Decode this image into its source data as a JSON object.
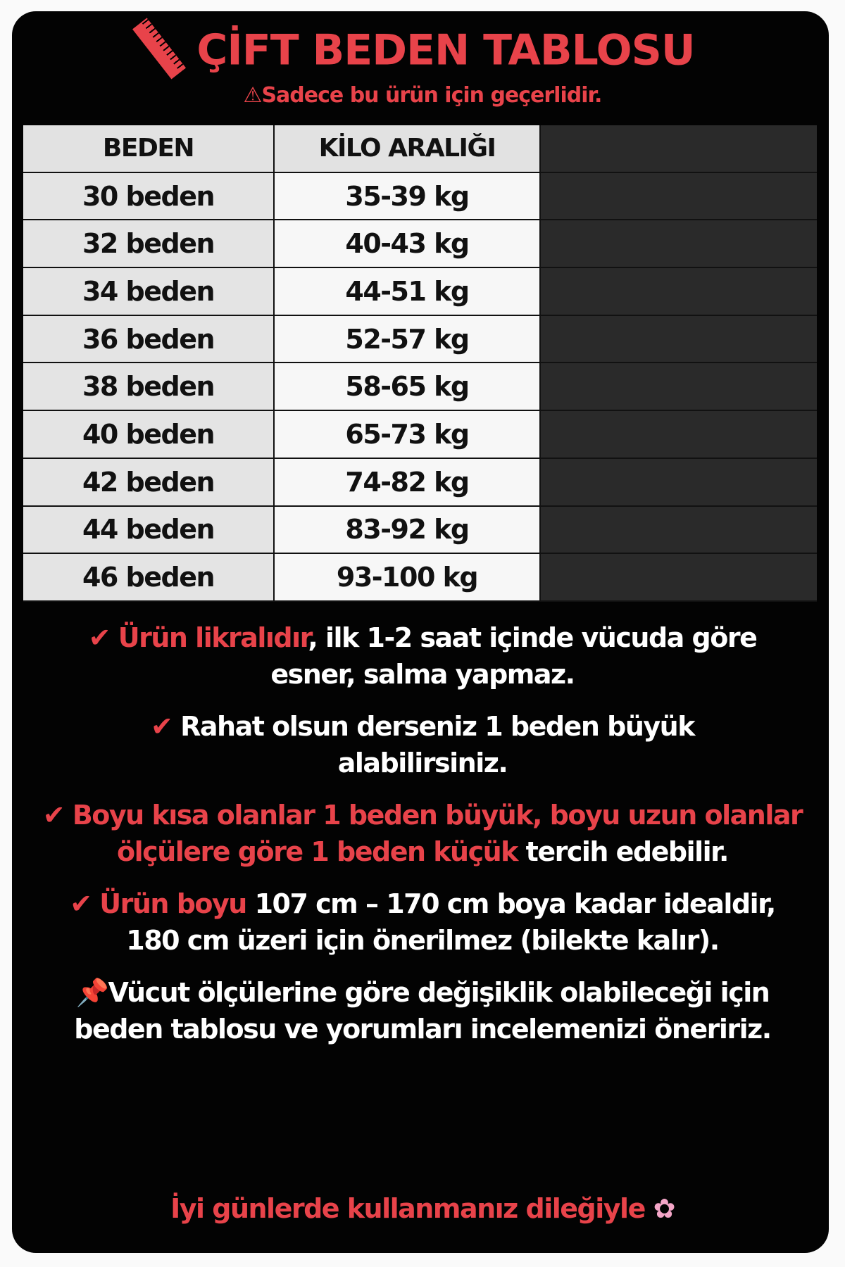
{
  "title": "ÇİFT BEDEN TABLOSU",
  "subtitle": "Sadece bu ürün için geçerlidir.",
  "icons": {
    "title": "ruler-icon",
    "subtitle": "warning-icon",
    "notes": "check-icon",
    "pin": "pushpin-icon",
    "footer": "flower-icon"
  },
  "colors": {
    "accent": "#e8434a",
    "background": "#030303"
  },
  "table": {
    "headers": [
      "BEDEN",
      "KİLO ARALIĞI"
    ],
    "rows": [
      [
        "30 beden",
        "35-39 kg"
      ],
      [
        "32 beden",
        "40-43 kg"
      ],
      [
        "34 beden",
        "44-51 kg"
      ],
      [
        "36 beden",
        "52-57 kg"
      ],
      [
        "38 beden",
        "58-65 kg"
      ],
      [
        "40 beden",
        "65-73 kg"
      ],
      [
        "42 beden",
        "74-82 kg"
      ],
      [
        "44 beden",
        "83-92 kg"
      ],
      [
        "46 beden",
        "93-100 kg"
      ]
    ]
  },
  "notes": {
    "n1_red": "Ürün likralıdır",
    "n1_rest": ", ilk 1-2 saat içinde vücuda göre esner, salma yapmaz.",
    "n2": "Rahat olsun derseniz 1 beden büyük alabilirsiniz.",
    "n3_red": "Boyu kısa olanlar 1 beden büyük, boyu uzun olanlar ölçülere göre 1 beden küçük",
    "n3_rest": " tercih edebilir.",
    "n4_red": "Ürün boyu",
    "n4_rest": " 107 cm – 170 cm boya kadar idealdir, 180 cm üzeri için önerilmez (bilekte kalır).",
    "n5": "Vücut ölçülerine göre değişiklik olabileceği için beden tablosu ve yorumları incelemenizi öneririz."
  },
  "footer": "İyi günlerde kullanmanız dileğiyle"
}
